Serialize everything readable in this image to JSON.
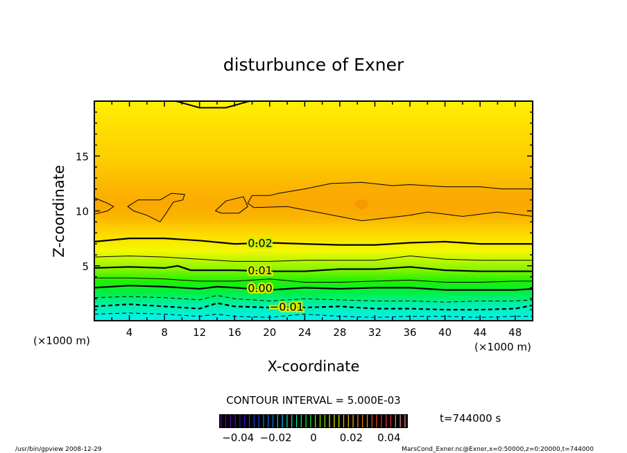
{
  "chart_data": {
    "type": "contour",
    "title": "disturbunce of Exner",
    "xlabel": "X-coordinate",
    "ylabel": "Z-coordinate",
    "x_unit_label": "(×1000 m)",
    "z_unit_label": "(×1000 m)",
    "xlim": [
      0,
      50
    ],
    "ylim": [
      0,
      20
    ],
    "xticks": [
      4,
      8,
      12,
      16,
      20,
      24,
      28,
      32,
      36,
      40,
      44,
      48
    ],
    "yticks": [
      5,
      10,
      15
    ],
    "contour_interval_label": "CONTOUR INTERVAL = 5.000E-03",
    "time_label": "t=744000 s",
    "colorbar": {
      "range": [
        -0.05,
        0.05
      ],
      "tick_values": [
        -0.04,
        -0.02,
        0,
        0.02,
        0.04
      ],
      "tick_labels": [
        "−0.04",
        "−0.02",
        "0",
        "0.02",
        "0.04"
      ]
    },
    "contours": [
      {
        "level": 0.02,
        "label": "0.02",
        "label_x": 17.5,
        "x": [
          0,
          4,
          8,
          12,
          16,
          20,
          24,
          28,
          32,
          36,
          40,
          44,
          48,
          50
        ],
        "z": [
          7.2,
          7.5,
          7.5,
          7.3,
          7.0,
          7.1,
          7.0,
          6.9,
          6.9,
          7.1,
          7.2,
          7.0,
          7.0,
          7.0
        ]
      },
      {
        "level": 0.015,
        "x": [
          0,
          4,
          8,
          12,
          16,
          20,
          24,
          28,
          32,
          36,
          40,
          44,
          48,
          50
        ],
        "z": [
          5.8,
          5.9,
          5.8,
          5.6,
          5.4,
          5.4,
          5.5,
          5.5,
          5.5,
          5.9,
          5.6,
          5.5,
          5.5,
          5.5
        ]
      },
      {
        "level": 0.01,
        "label": "0.01",
        "label_x": 17.5,
        "x": [
          0,
          4,
          8,
          9.5,
          11,
          16,
          20,
          24,
          28,
          32,
          36,
          40,
          44,
          48,
          50
        ],
        "z": [
          4.8,
          4.9,
          4.8,
          5.0,
          4.6,
          4.6,
          4.5,
          4.5,
          4.7,
          4.7,
          4.9,
          4.6,
          4.5,
          4.5,
          4.5
        ]
      },
      {
        "level": 0.005,
        "x": [
          0,
          4,
          8,
          12,
          16,
          20,
          24,
          28,
          32,
          36,
          40,
          44,
          48,
          50
        ],
        "z": [
          3.9,
          3.9,
          3.8,
          3.6,
          3.6,
          3.8,
          3.5,
          3.5,
          3.6,
          3.7,
          3.5,
          3.5,
          3.6,
          3.6
        ]
      },
      {
        "level": 0.0,
        "label": "0.00",
        "label_x": 17.5,
        "x": [
          0,
          4,
          8,
          12,
          14,
          16,
          20,
          24,
          28,
          32,
          36,
          40,
          44,
          48,
          50
        ],
        "z": [
          3.0,
          3.2,
          3.1,
          2.9,
          3.1,
          3.0,
          2.8,
          3.0,
          2.9,
          3.0,
          3.0,
          2.8,
          2.8,
          2.8,
          2.9
        ]
      },
      {
        "level": -0.005,
        "x": [
          0,
          4,
          8,
          12,
          14,
          16,
          20,
          24,
          28,
          32,
          36,
          40,
          44,
          48,
          50
        ],
        "z": [
          2.1,
          2.2,
          2.1,
          1.9,
          2.3,
          2.0,
          1.8,
          2.0,
          1.9,
          1.8,
          1.8,
          1.7,
          1.8,
          1.8,
          1.9
        ]
      },
      {
        "level": -0.01,
        "label": "−0.01",
        "label_x": 20,
        "x": [
          0,
          4,
          8,
          12,
          14,
          16,
          20,
          24,
          28,
          32,
          36,
          40,
          44,
          48,
          50
        ],
        "z": [
          1.3,
          1.5,
          1.3,
          1.1,
          1.6,
          1.3,
          1.2,
          1.2,
          1.3,
          1.1,
          1.1,
          1.0,
          1.0,
          1.1,
          1.4
        ]
      },
      {
        "level": -0.015,
        "x": [
          0,
          4,
          8,
          12,
          14,
          16,
          20,
          24,
          28,
          32,
          36,
          40,
          44,
          48,
          50
        ],
        "z": [
          0.6,
          0.7,
          0.6,
          0.4,
          0.6,
          0.4,
          0.3,
          0.6,
          0.4,
          0.3,
          0.4,
          0.4,
          0.3,
          0.4,
          0.4
        ]
      }
    ],
    "closed_contours": [
      {
        "level": 0.03,
        "x": [
          0,
          1.5,
          2.2,
          1.5,
          0
        ],
        "z": [
          11.2,
          10.7,
          10.4,
          10.0,
          9.7
        ]
      },
      {
        "level": 0.03,
        "x": [
          3.8,
          5,
          7.5,
          8.8,
          10.3,
          10.1,
          9,
          8.2,
          7.5,
          6,
          4.5,
          3.8
        ],
        "z": [
          10.4,
          11.0,
          11.0,
          11.6,
          11.5,
          11.0,
          10.8,
          9.8,
          9.0,
          9.6,
          10.0,
          10.4
        ]
      },
      {
        "level": 0.03,
        "x": [
          13.8,
          15,
          17,
          17.5,
          16.5,
          14.5,
          13.8
        ],
        "z": [
          10.0,
          10.9,
          11.3,
          10.4,
          9.8,
          9.8,
          10.0
        ]
      },
      {
        "level": 0.03,
        "x": [
          50,
          46,
          42,
          38,
          36,
          30.5,
          26,
          22,
          18.2,
          17.5,
          18,
          20,
          21,
          24,
          27,
          30.5,
          34,
          36,
          40,
          44,
          46.5,
          50
        ],
        "z": [
          9.5,
          9.9,
          9.5,
          9.9,
          9.6,
          9.1,
          9.8,
          10.4,
          10.3,
          10.7,
          11.4,
          11.4,
          11.6,
          12.0,
          12.5,
          12.6,
          12.3,
          12.4,
          12.2,
          12.2,
          12.0,
          12.0
        ]
      },
      {
        "level": 0.025,
        "x": [
          9.3,
          12,
          15,
          17.7
        ],
        "z": [
          20.0,
          19.4,
          19.4,
          20.0
        ]
      }
    ]
  },
  "footer": {
    "left": "/usr/bin/gpview   2008-12-29",
    "right": "MarsCond_Exner.nc@Exner,x=0:50000,z=0:20000,t=744000"
  }
}
